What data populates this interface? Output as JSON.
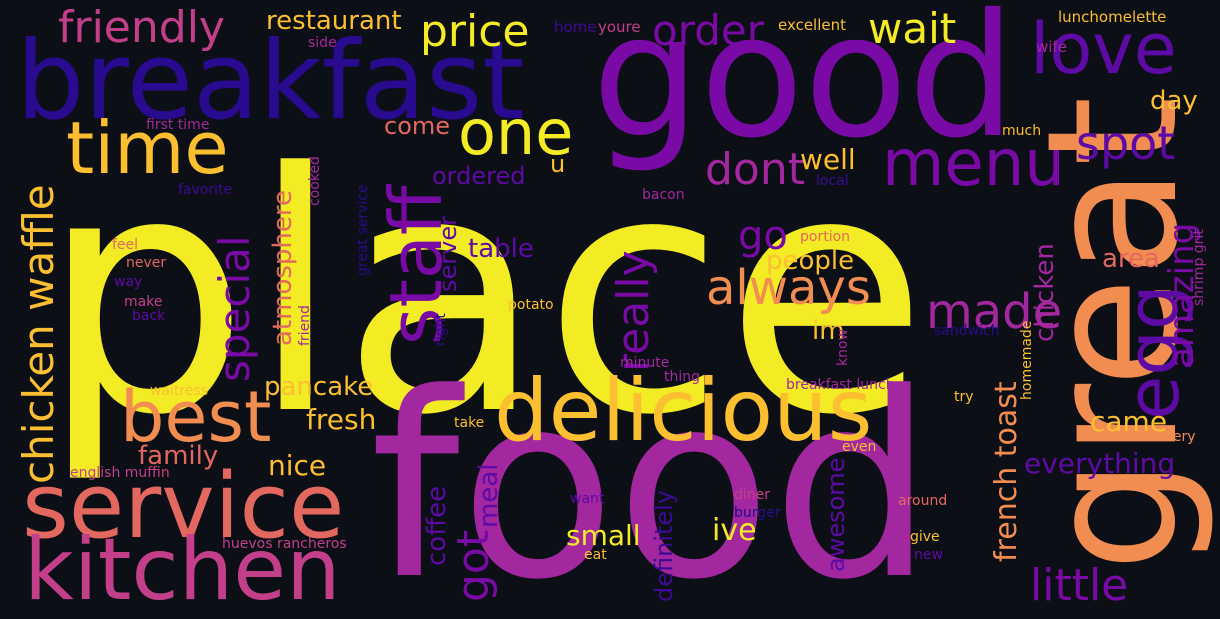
{
  "palette": {
    "background": "#0d0f17",
    "c_yellow": "#f3ec25",
    "c_gold": "#fbbf30",
    "c_orange": "#f28d51",
    "c_salmon": "#e3685f",
    "c_pink": "#c33f8a",
    "c_magenta": "#a3279f",
    "c_purple": "#7a0aa5",
    "c_violet": "#5e0aa4",
    "c_indigo": "#280b8e",
    "c_dim": "#3d0b93"
  },
  "words": {
    "place": "place",
    "food": "food",
    "good": "good",
    "great": "great",
    "breakfast": "breakfast",
    "delicious": "delicious",
    "service": "service",
    "kitchen": "kitchen",
    "best": "best",
    "time": "time",
    "staff": "staff",
    "menu": "menu",
    "love": "love",
    "egg": "egg",
    "one": "one",
    "always": "always",
    "chicken_waffle": "chicken waffle",
    "friendly": "friendly",
    "restaurant": "restaurant",
    "price": "price",
    "order": "order",
    "wait": "wait",
    "spot": "spot",
    "special": "special",
    "really": "really",
    "dont": "dont",
    "go": "go",
    "made": "made",
    "amazing": "amazing",
    "little": "little",
    "got": "got",
    "french_toast": "french toast",
    "atmosphere": "atmosphere",
    "chicken": "chicken",
    "pancake": "pancake",
    "fresh": "fresh",
    "family": "family",
    "nice": "nice",
    "came": "came",
    "everything": "everything",
    "coffee": "coffee",
    "meal": "meal",
    "definitely": "definitely",
    "awesome": "awesome",
    "small": "small",
    "ive": "ive",
    "people": "people",
    "table": "table",
    "server": "server",
    "well": "well",
    "come": "come",
    "ordered": "ordered",
    "day": "day",
    "area": "area",
    "im": "im",
    "u": "u",
    "excellent": "excellent",
    "lunchomelette": "lunchomelette",
    "wife": "wife",
    "home": "home",
    "youre": "youre",
    "side": "side",
    "first_time": "first time",
    "much": "much",
    "local": "local",
    "favorite": "favorite",
    "cooked": "cooked",
    "great_service": "great service",
    "bacon": "bacon",
    "feel": "feel",
    "never": "never",
    "way": "way",
    "make": "make",
    "back": "back",
    "friend": "friend",
    "right": "right",
    "potato": "potato",
    "portion": "portion",
    "shrimp_grit": "shrimp grit",
    "sandwich": "sandwich",
    "know": "know",
    "homemade": "homemade",
    "minute": "minute",
    "thing": "thing",
    "breakfast_lunch": "breakfast lunch",
    "waitress": "waitress",
    "take": "take",
    "try": "try",
    "even": "even",
    "every": "every",
    "english_muffin": "english muffin",
    "want": "want",
    "diner": "diner",
    "burger": "burger",
    "around": "around",
    "huevos_rancheros": "huevos rancheros",
    "eat": "eat",
    "give": "give",
    "new": "new"
  }
}
